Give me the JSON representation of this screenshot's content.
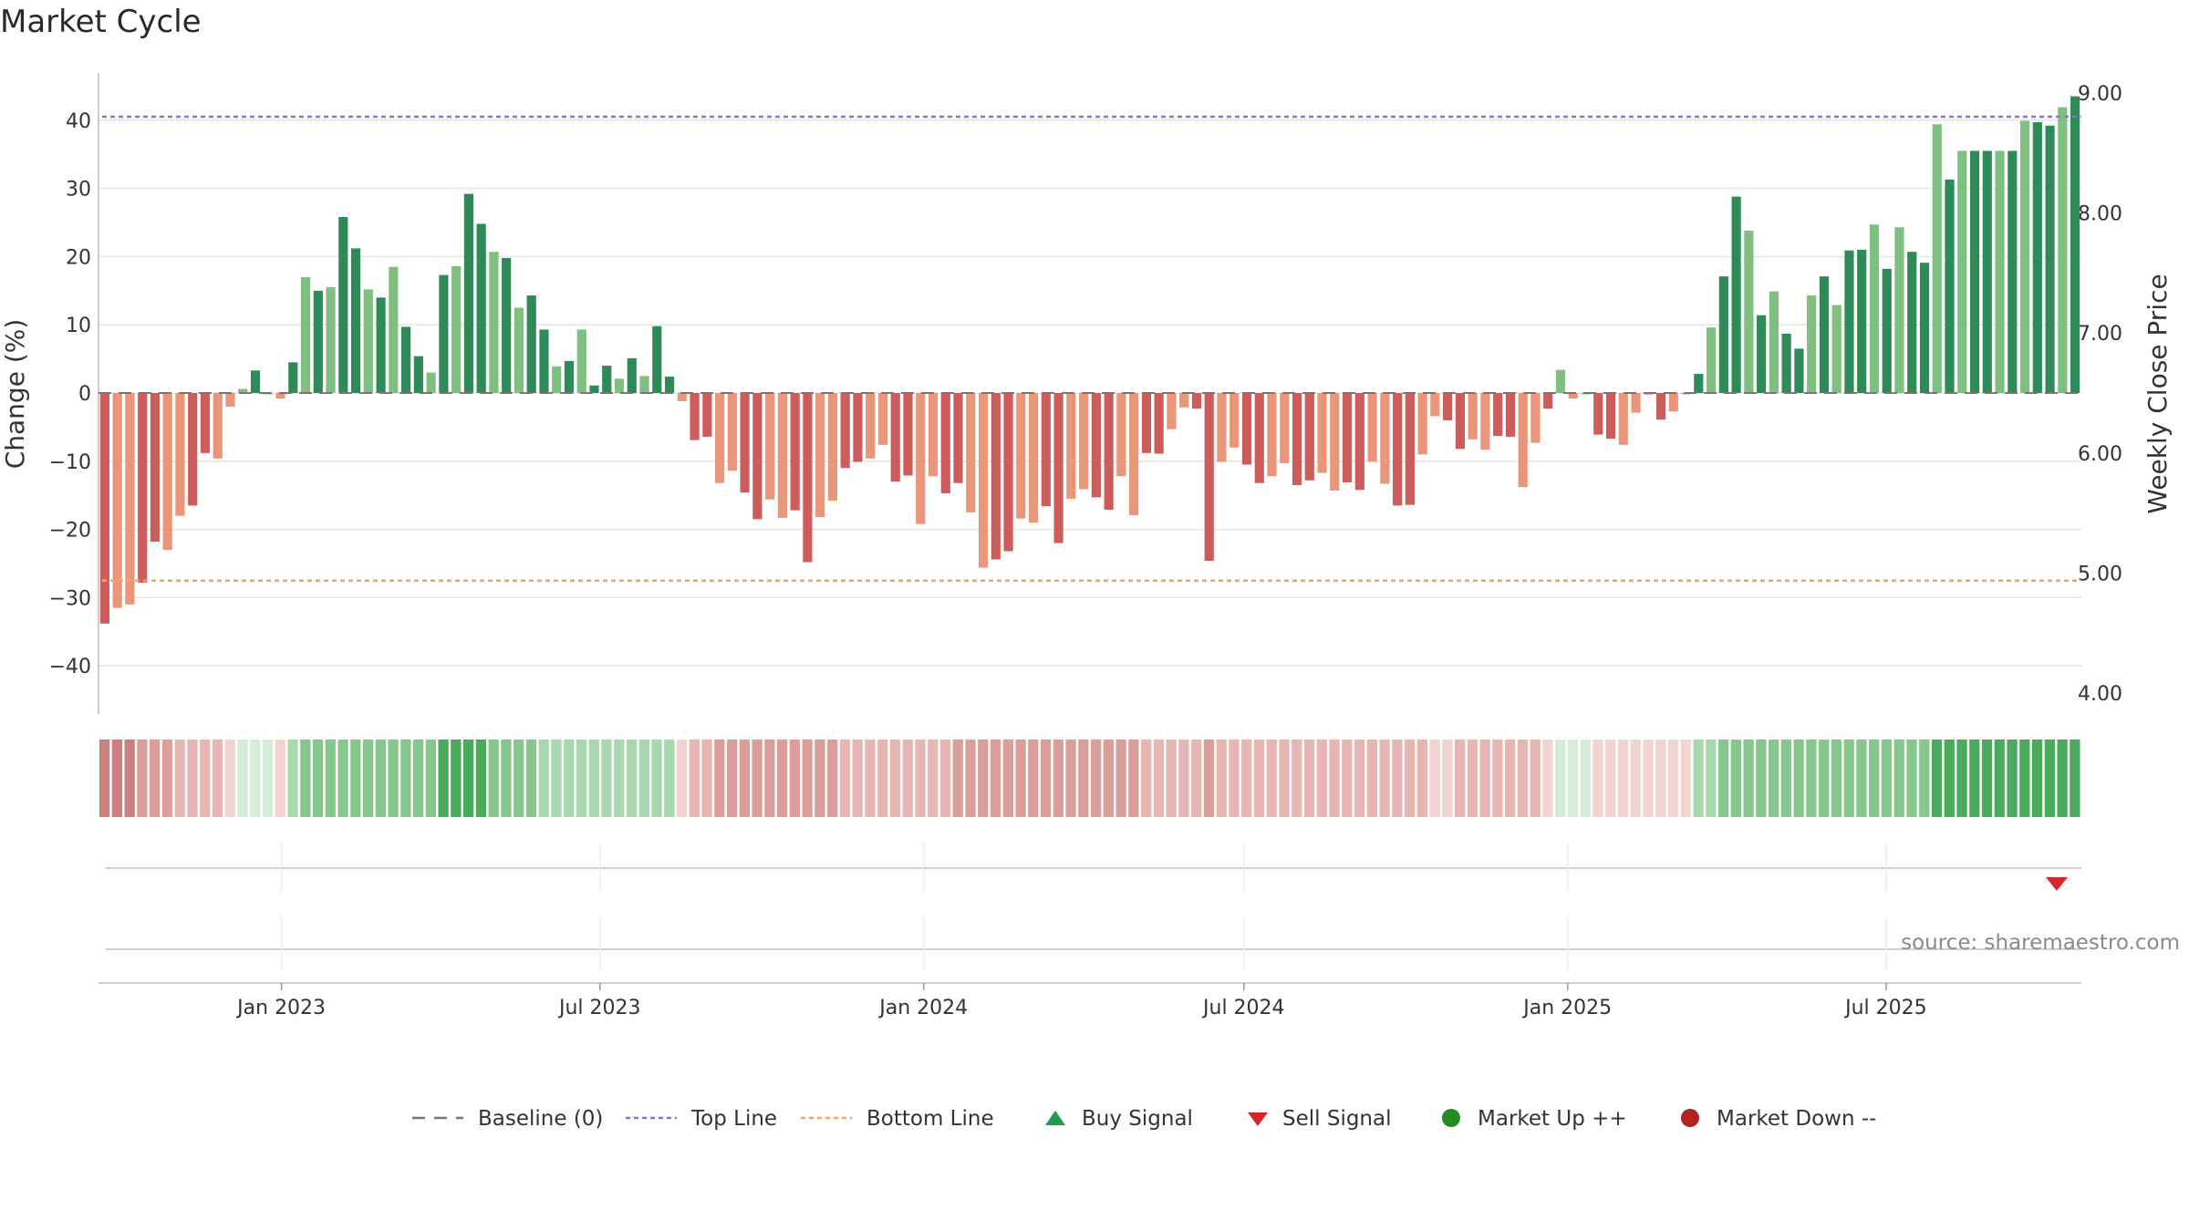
{
  "chart_data": {
    "type": "bar",
    "title": "Market Cycle",
    "ylabel": "Change (%)",
    "y2label": "Weekly Close Price",
    "ylim": [
      -47,
      48
    ],
    "y2lim": [
      3.7,
      9.45
    ],
    "yticks": [
      40,
      30,
      20,
      10,
      0,
      -10,
      -20,
      -30,
      -40
    ],
    "ytick_labels": [
      "40",
      "30",
      "20",
      "10",
      "0",
      "−10",
      "−20",
      "−30",
      "−40"
    ],
    "y2ticks": [
      9.0,
      8.0,
      7.0,
      6.0,
      5.0,
      4.0
    ],
    "y2tick_labels": [
      "9.00",
      "8.00",
      "7.00",
      "6.00",
      "5.00",
      "4.00"
    ],
    "x_start_date": "2022-09-19",
    "x_end_date": "2025-10-20",
    "xtick_dates": [
      "2023-01-01",
      "2023-07-01",
      "2024-01-01",
      "2024-07-01",
      "2025-01-01",
      "2025-07-01"
    ],
    "xtick_labels": [
      "Jan 2023",
      "Jul 2023",
      "Jan 2024",
      "Jul 2024",
      "Jan 2025",
      "Jul 2025"
    ],
    "top_line": 40.5,
    "bottom_line": -27.5,
    "grid": true,
    "values": [
      -33.8,
      -31.5,
      -31.0,
      -27.8,
      -21.8,
      -23.0,
      -18.0,
      -16.5,
      -8.8,
      -9.6,
      -2.0,
      0.6,
      3.3,
      0.0,
      -0.8,
      4.5,
      17.0,
      15.0,
      15.5,
      25.8,
      21.2,
      15.2,
      14.0,
      18.5,
      9.7,
      5.4,
      3.0,
      17.3,
      18.6,
      29.2,
      24.8,
      20.7,
      19.8,
      12.5,
      14.3,
      9.3,
      3.9,
      4.7,
      9.3,
      1.1,
      4.0,
      2.1,
      5.1,
      2.5,
      9.8,
      2.4,
      -1.2,
      -6.9,
      -6.4,
      -13.2,
      -11.4,
      -14.6,
      -18.5,
      -15.6,
      -18.3,
      -17.2,
      -24.8,
      -18.2,
      -15.8,
      -11.0,
      -10.1,
      -9.6,
      -7.6,
      -13.0,
      -12.1,
      -19.2,
      -12.2,
      -14.7,
      -13.2,
      -17.5,
      -25.6,
      -24.4,
      -23.2,
      -18.4,
      -19.0,
      -16.6,
      -22.0,
      -15.5,
      -14.1,
      -15.3,
      -17.1,
      -12.2,
      -17.9,
      -8.8,
      -8.9,
      -5.3,
      -2.1,
      -2.3,
      -24.6,
      -10.1,
      -8.0,
      -10.5,
      -13.2,
      -12.2,
      -10.3,
      -13.5,
      -12.8,
      -11.7,
      -14.3,
      -13.1,
      -14.2,
      -10.1,
      -13.3,
      -16.5,
      -16.4,
      -9.0,
      -3.4,
      -4.0,
      -8.2,
      -6.8,
      -8.3,
      -6.3,
      -6.4,
      -13.8,
      -7.3,
      -2.3,
      3.4,
      -0.8,
      0.0,
      -6.1,
      -6.7,
      -7.6,
      -2.9,
      -0.1,
      -3.9,
      -2.7,
      0.0,
      2.8,
      9.6,
      17.1,
      28.8,
      23.8,
      11.4,
      14.9,
      8.7,
      6.5,
      14.3,
      17.1,
      12.9,
      20.9,
      21.0,
      24.7,
      18.2,
      24.3,
      20.7,
      19.1,
      39.4,
      31.3,
      35.5,
      35.5,
      35.5,
      35.5,
      35.5,
      39.9,
      39.7,
      39.2,
      41.9,
      43.5
    ],
    "strength": [
      -4,
      -4,
      -4,
      -3,
      -3,
      -3,
      -2,
      -2,
      -2,
      -2,
      -1,
      1,
      1,
      1,
      -1,
      2,
      3,
      3,
      3,
      3,
      3,
      3,
      3,
      3,
      3,
      3,
      3,
      4,
      4,
      4,
      4,
      3,
      3,
      3,
      3,
      2,
      2,
      2,
      2,
      2,
      2,
      2,
      2,
      2,
      2,
      2,
      -1,
      -2,
      -2,
      -3,
      -3,
      -3,
      -3,
      -3,
      -3,
      -3,
      -3,
      -3,
      -3,
      -2,
      -2,
      -2,
      -2,
      -2,
      -2,
      -2,
      -2,
      -2,
      -3,
      -3,
      -3,
      -3,
      -3,
      -3,
      -3,
      -3,
      -3,
      -3,
      -3,
      -3,
      -3,
      -3,
      -3,
      -2,
      -2,
      -2,
      -2,
      -2,
      -3,
      -2,
      -2,
      -2,
      -2,
      -2,
      -2,
      -2,
      -2,
      -2,
      -2,
      -2,
      -2,
      -2,
      -2,
      -2,
      -2,
      -2,
      -1,
      -1,
      -2,
      -2,
      -2,
      -2,
      -2,
      -2,
      -2,
      -1,
      1,
      1,
      1,
      -1,
      -1,
      -1,
      -1,
      -1,
      -1,
      -1,
      -1,
      2,
      2,
      3,
      3,
      3,
      3,
      3,
      3,
      3,
      3,
      3,
      3,
      3,
      3,
      3,
      3,
      3,
      3,
      3,
      4,
      4,
      4,
      4,
      4,
      4,
      4,
      4,
      4,
      4,
      4,
      4
    ],
    "sell_signal_dates": [
      "2025-10-06"
    ],
    "buy_signal_dates": [],
    "source_text": "source: sharemaestro.com",
    "legend": [
      {
        "label": "Baseline (0)",
        "symbol": "dashed-line",
        "color": "#777777"
      },
      {
        "label": "Top Line",
        "symbol": "dotted-line",
        "color": "#9370db"
      },
      {
        "label": "Bottom Line",
        "symbol": "dotted-line",
        "color": "#f4a460"
      },
      {
        "label": "Buy Signal",
        "symbol": "triangle-up",
        "color": "#1e9e4a"
      },
      {
        "label": "Sell Signal",
        "symbol": "triangle-down",
        "color": "#d62728"
      },
      {
        "label": "Market Up ++",
        "symbol": "circle",
        "color": "#228b22"
      },
      {
        "label": "Market Down --",
        "symbol": "circle",
        "color": "#b22222"
      }
    ],
    "colors": {
      "bar_up_strong": "#2e8b57",
      "bar_up_weak": "#7fbf7f",
      "bar_down_strong": "#cd5c5c",
      "bar_down_weak": "#e9967a",
      "baseline": "#777777",
      "grid": "#e6e6e6"
    }
  }
}
